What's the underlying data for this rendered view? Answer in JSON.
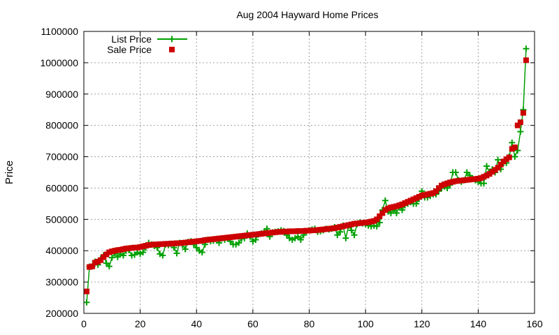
{
  "chart_data": {
    "type": "line",
    "title": "Aug 2004 Hayward Home Prices",
    "xlabel": "",
    "ylabel": "Price",
    "xlim": [
      0,
      160
    ],
    "ylim": [
      200000,
      1100000
    ],
    "xticks": [
      "0",
      "20",
      "40",
      "60",
      "80",
      "100",
      "120",
      "140",
      "160"
    ],
    "yticks": [
      "200000",
      "300000",
      "400000",
      "500000",
      "600000",
      "700000",
      "800000",
      "900000",
      "1000000",
      "1100000"
    ],
    "grid": true,
    "legend_position": "top-left",
    "colors": {
      "list": "#00a000",
      "sale": "#cc0000"
    },
    "series": [
      {
        "name": "List Price",
        "style": "line-with-plus-markers",
        "x": [
          1,
          2,
          3,
          4,
          5,
          6,
          7,
          8,
          9,
          10,
          11,
          12,
          13,
          14,
          15,
          16,
          17,
          18,
          19,
          20,
          21,
          22,
          23,
          24,
          25,
          26,
          27,
          28,
          29,
          30,
          31,
          32,
          33,
          34,
          35,
          36,
          37,
          38,
          39,
          40,
          41,
          42,
          43,
          44,
          45,
          46,
          47,
          48,
          49,
          50,
          51,
          52,
          53,
          54,
          55,
          56,
          57,
          58,
          59,
          60,
          61,
          62,
          63,
          64,
          65,
          66,
          67,
          68,
          69,
          70,
          71,
          72,
          73,
          74,
          75,
          76,
          77,
          78,
          79,
          80,
          81,
          82,
          83,
          84,
          85,
          86,
          87,
          88,
          89,
          90,
          91,
          92,
          93,
          94,
          95,
          96,
          97,
          98,
          99,
          100,
          101,
          102,
          103,
          104,
          105,
          106,
          107,
          108,
          109,
          110,
          111,
          112,
          113,
          114,
          115,
          116,
          117,
          118,
          119,
          120,
          121,
          122,
          123,
          124,
          125,
          126,
          127,
          128,
          129,
          130,
          131,
          132,
          133,
          134,
          135,
          136,
          137,
          138,
          139,
          140,
          141,
          142,
          143,
          144,
          145,
          146,
          147,
          148,
          149,
          150,
          151,
          152,
          153,
          154,
          155,
          156,
          157
        ],
        "values": [
          235000,
          349000,
          350000,
          365000,
          355000,
          375000,
          385000,
          360000,
          350000,
          378000,
          392000,
          380000,
          390000,
          385000,
          400000,
          402000,
          385000,
          387000,
          395000,
          390000,
          395000,
          410000,
          425000,
          420000,
          415000,
          410000,
          390000,
          385000,
          420000,
          418000,
          422000,
          410000,
          392000,
          425000,
          418000,
          405000,
          428000,
          430000,
          420000,
          410000,
          400000,
          395000,
          420000,
          435000,
          430000,
          432000,
          437000,
          425000,
          439000,
          435000,
          440000,
          430000,
          420000,
          420000,
          425000,
          438000,
          440000,
          455000,
          445000,
          430000,
          435000,
          452000,
          455000,
          460000,
          470000,
          445000,
          458000,
          460000,
          462000,
          465000,
          463000,
          450000,
          440000,
          435000,
          440000,
          445000,
          435000,
          450000,
          460000,
          465000,
          468000,
          470000,
          460000,
          462000,
          465000,
          470000,
          468000,
          470000,
          475000,
          450000,
          460000,
          480000,
          440000,
          480000,
          465000,
          450000,
          485000,
          490000,
          487000,
          485000,
          480000,
          478000,
          480000,
          478000,
          490000,
          530000,
          560000,
          525000,
          520000,
          530000,
          520000,
          540000,
          530000,
          545000,
          550000,
          555000,
          550000,
          550000,
          565000,
          590000,
          570000,
          570000,
          575000,
          580000,
          580000,
          590000,
          600000,
          605000,
          600000,
          610000,
          650000,
          650000,
          625000,
          620000,
          625000,
          650000,
          640000,
          630000,
          625000,
          620000,
          615000,
          615000,
          670000,
          650000,
          660000,
          650000,
          690000,
          660000,
          680000,
          680000,
          700000,
          745000,
          700000,
          720000,
          780000,
          850000,
          1045000
        ]
      },
      {
        "name": "Sale Price",
        "style": "square-markers",
        "x": [
          1,
          2,
          3,
          4,
          5,
          6,
          7,
          8,
          9,
          10,
          11,
          12,
          13,
          14,
          15,
          16,
          17,
          18,
          19,
          20,
          21,
          22,
          23,
          24,
          25,
          26,
          27,
          28,
          29,
          30,
          31,
          32,
          33,
          34,
          35,
          36,
          37,
          38,
          39,
          40,
          41,
          42,
          43,
          44,
          45,
          46,
          47,
          48,
          49,
          50,
          51,
          52,
          53,
          54,
          55,
          56,
          57,
          58,
          59,
          60,
          61,
          62,
          63,
          64,
          65,
          66,
          67,
          68,
          69,
          70,
          71,
          72,
          73,
          74,
          75,
          76,
          77,
          78,
          79,
          80,
          81,
          82,
          83,
          84,
          85,
          86,
          87,
          88,
          89,
          90,
          91,
          92,
          93,
          94,
          95,
          96,
          97,
          98,
          99,
          100,
          101,
          102,
          103,
          104,
          105,
          106,
          107,
          108,
          109,
          110,
          111,
          112,
          113,
          114,
          115,
          116,
          117,
          118,
          119,
          120,
          121,
          122,
          123,
          124,
          125,
          126,
          127,
          128,
          129,
          130,
          131,
          132,
          133,
          134,
          135,
          136,
          137,
          138,
          139,
          140,
          141,
          142,
          143,
          144,
          145,
          146,
          147,
          148,
          149,
          150,
          151,
          152,
          153,
          154,
          155,
          156,
          157
        ],
        "values": [
          270000,
          348000,
          350000,
          362000,
          365000,
          370000,
          380000,
          388000,
          395000,
          398000,
          400000,
          402000,
          403000,
          405000,
          407000,
          408000,
          409000,
          410000,
          410000,
          412000,
          414000,
          416000,
          418000,
          419000,
          420000,
          420000,
          421000,
          421000,
          422000,
          422000,
          423000,
          423000,
          424000,
          424000,
          425000,
          426000,
          427000,
          428000,
          429000,
          430000,
          431000,
          432000,
          434000,
          435000,
          436000,
          437000,
          438000,
          439000,
          440000,
          441000,
          442000,
          443000,
          444000,
          445000,
          446000,
          447000,
          448000,
          449000,
          450000,
          451000,
          452000,
          453000,
          454000,
          455000,
          456000,
          457000,
          458000,
          459000,
          460000,
          460000,
          461000,
          461000,
          462000,
          462000,
          462000,
          463000,
          463000,
          463000,
          464000,
          464000,
          465000,
          465000,
          466000,
          467000,
          468000,
          469000,
          470000,
          471000,
          472000,
          474000,
          476000,
          478000,
          480000,
          482000,
          484000,
          486000,
          487000,
          488000,
          489000,
          490000,
          491000,
          493000,
          495000,
          500000,
          510000,
          520000,
          530000,
          535000,
          538000,
          540000,
          542000,
          545000,
          548000,
          552000,
          556000,
          560000,
          564000,
          568000,
          572000,
          576000,
          578000,
          580000,
          582000,
          584000,
          590000,
          600000,
          608000,
          612000,
          615000,
          618000,
          620000,
          622000,
          623000,
          624000,
          625000,
          626000,
          627000,
          628000,
          629000,
          630000,
          632000,
          636000,
          640000,
          645000,
          652000,
          658000,
          665000,
          675000,
          685000,
          692000,
          698000,
          725000,
          730000,
          800000,
          810000,
          840000,
          1008000
        ]
      }
    ]
  }
}
